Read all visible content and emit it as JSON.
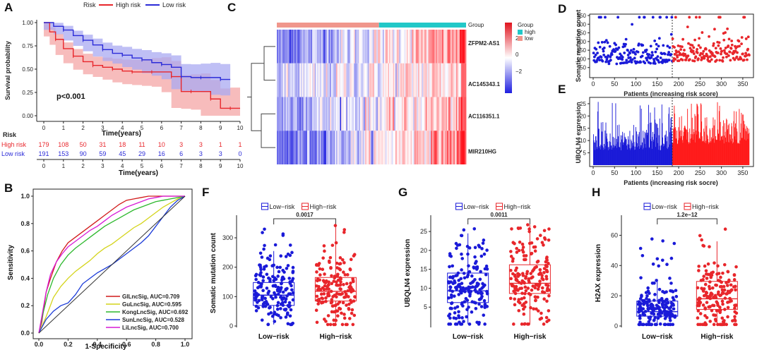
{
  "panels": {
    "A": {
      "label": "A",
      "chart_data": {
        "type": "line",
        "title": "",
        "xlabel": "Time(years)",
        "ylabel": "Survival probability",
        "xlim": [
          0,
          10
        ],
        "ylim": [
          0,
          1
        ],
        "x_ticks": [
          "0",
          "1",
          "2",
          "3",
          "4",
          "5",
          "6",
          "7",
          "8",
          "9",
          "10"
        ],
        "y_ticks": [
          "0.00",
          "0.25",
          "0.50",
          "0.75",
          "1.00"
        ],
        "legend_title": "Risk",
        "legend": [
          "High risk",
          "Low risk"
        ],
        "pvalue": "p<0.001",
        "series": [
          {
            "name": "High risk",
            "color": "#e8262b",
            "x": [
              0,
              0.3,
              0.6,
              1.0,
              1.5,
              2.0,
              2.5,
              3.0,
              3.5,
              4.0,
              4.5,
              5.0,
              5.5,
              6.0,
              6.5,
              7.0,
              7.5,
              8.0,
              8.5,
              9.0,
              9.5,
              10
            ],
            "y": [
              1.0,
              0.9,
              0.82,
              0.72,
              0.64,
              0.58,
              0.54,
              0.52,
              0.5,
              0.48,
              0.47,
              0.47,
              0.47,
              0.47,
              0.42,
              0.26,
              0.26,
              0.26,
              0.18,
              0.08,
              0.08,
              0.08
            ]
          },
          {
            "name": "Low risk",
            "color": "#2b2bd8",
            "x": [
              0,
              0.5,
              1.0,
              1.5,
              2.0,
              2.5,
              3.0,
              3.5,
              4.0,
              4.5,
              5.0,
              5.5,
              6.0,
              6.5,
              7.0,
              7.5,
              8.0,
              8.5,
              9.0,
              9.5
            ],
            "y": [
              1.0,
              0.96,
              0.92,
              0.86,
              0.81,
              0.76,
              0.71,
              0.67,
              0.65,
              0.62,
              0.6,
              0.57,
              0.55,
              0.52,
              0.42,
              0.41,
              0.41,
              0.41,
              0.39,
              0.39
            ]
          }
        ],
        "risk_table": {
          "title": "Risk",
          "xlabel": "Time(years)",
          "rows": [
            {
              "name": "High risk",
              "values": [
                "179",
                "108",
                "50",
                "31",
                "18",
                "11",
                "10",
                "3",
                "3",
                "1",
                "1"
              ]
            },
            {
              "name": "Low risk",
              "values": [
                "191",
                "153",
                "90",
                "59",
                "45",
                "29",
                "16",
                "6",
                "3",
                "3",
                "0"
              ]
            }
          ]
        }
      }
    },
    "B": {
      "label": "B",
      "chart_data": {
        "type": "line",
        "xlabel": "1-Specificity",
        "ylabel": "Sensitivity",
        "xlim": [
          0,
          1
        ],
        "ylim": [
          0,
          1
        ],
        "ticks": [
          "0.0",
          "0.2",
          "0.4",
          "0.6",
          "0.8",
          "1.0"
        ],
        "series": [
          {
            "name": "GILncSig, AUC=0.709",
            "color": "#d11a1a",
            "x": [
              0,
              0.02,
              0.05,
              0.08,
              0.12,
              0.16,
              0.2,
              0.25,
              0.3,
              0.35,
              0.4,
              0.45,
              0.5,
              0.55,
              0.6,
              0.65,
              0.7,
              0.75,
              0.8,
              0.85,
              0.9,
              0.95,
              1
            ],
            "y": [
              0,
              0.08,
              0.3,
              0.4,
              0.52,
              0.6,
              0.66,
              0.7,
              0.74,
              0.78,
              0.82,
              0.86,
              0.9,
              0.94,
              0.97,
              0.98,
              0.99,
              1,
              1,
              1,
              1,
              1,
              1
            ]
          },
          {
            "name": "GuLncSig, AUC=0.595",
            "color": "#d4d41a",
            "x": [
              0,
              0.05,
              0.1,
              0.15,
              0.2,
              0.25,
              0.3,
              0.35,
              0.4,
              0.45,
              0.5,
              0.55,
              0.6,
              0.65,
              0.7,
              0.75,
              0.8,
              0.85,
              0.9,
              0.95,
              1
            ],
            "y": [
              0,
              0.12,
              0.26,
              0.34,
              0.4,
              0.45,
              0.49,
              0.53,
              0.58,
              0.62,
              0.65,
              0.69,
              0.73,
              0.77,
              0.8,
              0.84,
              0.88,
              0.92,
              0.95,
              0.98,
              1
            ]
          },
          {
            "name": "KongLncSig, AUC=0.692",
            "color": "#2db82d",
            "x": [
              0,
              0.03,
              0.06,
              0.1,
              0.15,
              0.2,
              0.25,
              0.3,
              0.35,
              0.4,
              0.45,
              0.5,
              0.55,
              0.6,
              0.65,
              0.7,
              0.75,
              0.8,
              0.85,
              0.9,
              0.95,
              1
            ],
            "y": [
              0,
              0.15,
              0.28,
              0.4,
              0.5,
              0.57,
              0.62,
              0.66,
              0.7,
              0.74,
              0.78,
              0.81,
              0.84,
              0.87,
              0.9,
              0.92,
              0.94,
              0.96,
              0.97,
              0.98,
              0.99,
              1
            ]
          },
          {
            "name": "SunLncSig, AUC=0.528",
            "color": "#1a3ad8",
            "x": [
              0,
              0.05,
              0.1,
              0.15,
              0.2,
              0.25,
              0.3,
              0.35,
              0.4,
              0.45,
              0.5,
              0.55,
              0.6,
              0.65,
              0.7,
              0.75,
              0.8,
              0.85,
              0.9,
              0.95,
              1
            ],
            "y": [
              0,
              0.1,
              0.16,
              0.2,
              0.22,
              0.28,
              0.36,
              0.4,
              0.44,
              0.47,
              0.5,
              0.54,
              0.58,
              0.62,
              0.66,
              0.71,
              0.78,
              0.85,
              0.92,
              0.97,
              1
            ]
          },
          {
            "name": "LiLncSig, AUC=0.700",
            "color": "#d61ad6",
            "x": [
              0,
              0.02,
              0.05,
              0.08,
              0.12,
              0.16,
              0.2,
              0.25,
              0.3,
              0.35,
              0.4,
              0.45,
              0.5,
              0.55,
              0.6,
              0.65,
              0.7,
              0.75,
              0.8,
              0.85,
              0.9,
              1
            ],
            "y": [
              0,
              0.12,
              0.3,
              0.43,
              0.52,
              0.58,
              0.63,
              0.67,
              0.71,
              0.75,
              0.78,
              0.82,
              0.86,
              0.89,
              0.92,
              0.94,
              0.96,
              0.98,
              0.99,
              1,
              1,
              1
            ]
          },
          {
            "name": "reference",
            "color": "#333333",
            "x": [
              0,
              1
            ],
            "y": [
              0,
              1
            ]
          }
        ]
      }
    },
    "C": {
      "label": "C",
      "chart_data": {
        "type": "heatmap",
        "annotation_label": "Group",
        "legend_title": "Group",
        "groups": [
          {
            "name": "high",
            "color": "#22c8c8"
          },
          {
            "name": "low",
            "color": "#f0968c"
          }
        ],
        "rows": [
          "ZFPM2-AS1",
          "AC145343.1",
          "AC116351.1",
          "MIR210HG"
        ],
        "scale_ticks": [
          "2",
          "0",
          "−2"
        ],
        "scale_colors": [
          "#e0141e",
          "#ffffff",
          "#1f1fe0"
        ]
      }
    },
    "D": {
      "label": "D",
      "chart_data": {
        "type": "scatter",
        "xlabel": "Patients (increasing risk score)",
        "ylabel": "Somatic mutation count",
        "xlim": [
          0,
          370
        ],
        "ylim": [
          0,
          350
        ],
        "x_ticks": [
          "0",
          "50",
          "100",
          "150",
          "200",
          "250",
          "300",
          "350"
        ],
        "y_ticks": [
          "50",
          "100",
          "150",
          "200",
          "250",
          "300",
          "350"
        ],
        "cutoff": 185,
        "series": [
          {
            "name": "Low risk",
            "color": "#1a1ad8"
          },
          {
            "name": "High risk",
            "color": "#e8262b"
          }
        ]
      }
    },
    "E": {
      "label": "E",
      "chart_data": {
        "type": "bar",
        "xlabel": "Patients (increasing risk socre)",
        "ylabel": "UBQLN4 expression",
        "xlim": [
          0,
          370
        ],
        "ylim": [
          0,
          27
        ],
        "x_ticks": [
          "0",
          "50",
          "100",
          "150",
          "200",
          "250",
          "300",
          "350"
        ],
        "y_ticks": [
          "5",
          "10",
          "15",
          "20",
          "25"
        ],
        "cutoff": 185,
        "series": [
          {
            "name": "Low risk",
            "color": "#1a1ad8"
          },
          {
            "name": "High risk",
            "color": "#ff1a1a"
          }
        ]
      }
    },
    "F": {
      "label": "F",
      "chart_data": {
        "type": "box",
        "ylabel": "Somatic mutation count",
        "categories": [
          "Low−risk",
          "High−risk"
        ],
        "legend": [
          "Low−risk",
          "High−risk"
        ],
        "pvalue": "0.0017",
        "ylim": [
          0,
          360
        ],
        "y_ticks": [
          "0",
          "100",
          "200",
          "300"
        ],
        "boxes": [
          {
            "min": 5,
            "q1": 70,
            "median": 105,
            "q3": 148,
            "max": 255
          },
          {
            "min": 5,
            "q1": 85,
            "median": 118,
            "q3": 165,
            "max": 345
          }
        ]
      }
    },
    "G": {
      "label": "G",
      "chart_data": {
        "type": "box",
        "ylabel": "UBQLN4 expression",
        "categories": [
          "Low−risk",
          "High−risk"
        ],
        "legend": [
          "Low−risk",
          "High−risk"
        ],
        "pvalue": "0.0011",
        "ylim": [
          0,
          28
        ],
        "y_ticks": [
          "5",
          "10",
          "15",
          "20",
          "25"
        ],
        "boxes": [
          {
            "min": 0.5,
            "q1": 6.2,
            "median": 9.3,
            "q3": 14,
            "max": 24.5
          },
          {
            "min": 0.5,
            "q1": 8.6,
            "median": 11.3,
            "q3": 16.2,
            "max": 26.8
          }
        ]
      }
    },
    "H": {
      "label": "H",
      "chart_data": {
        "type": "box",
        "ylabel": "H2AX expression",
        "categories": [
          "Low−risk",
          "High−risk"
        ],
        "legend": [
          "Low−risk",
          "High−risk"
        ],
        "pvalue": "1.2e−12",
        "ylim": [
          0,
          70
        ],
        "y_ticks": [
          "0",
          "20",
          "40",
          "60"
        ],
        "boxes": [
          {
            "min": 1,
            "q1": 6.5,
            "median": 9.5,
            "q3": 16.5,
            "max": 31
          },
          {
            "min": 1,
            "q1": 11,
            "median": 18,
            "q3": 29.5,
            "max": 56
          }
        ]
      }
    }
  },
  "colors": {
    "high": "#e8262b",
    "low": "#1a1ad8",
    "high_fill": "#f4a6a6",
    "low_fill": "#a9a9f0"
  }
}
